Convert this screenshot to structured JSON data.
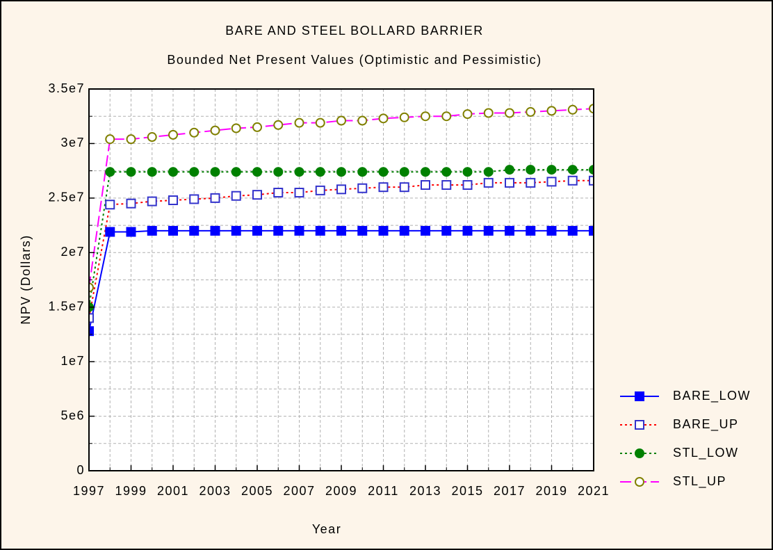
{
  "chart_data": {
    "type": "line",
    "title": "BARE AND STEEL BOLLARD BARRIER",
    "subtitle": "Bounded Net Present Values (Optimistic and Pessimistic)",
    "x_label": "Year",
    "y_label": "NPV (Dollars)",
    "x": [
      1997,
      1998,
      1999,
      2000,
      2001,
      2002,
      2003,
      2004,
      2005,
      2006,
      2007,
      2008,
      2009,
      2010,
      2011,
      2012,
      2013,
      2014,
      2015,
      2016,
      2017,
      2018,
      2019,
      2020,
      2021
    ],
    "xlim": [
      1997,
      2021
    ],
    "xticks": [
      1997,
      1999,
      2001,
      2003,
      2005,
      2007,
      2009,
      2011,
      2013,
      2015,
      2017,
      2019,
      2021
    ],
    "ylim": [
      0,
      35000000
    ],
    "yticks": [
      0,
      {
        "value": 5000000,
        "label": "5e6"
      },
      {
        "value": 10000000,
        "label": "1e7"
      },
      {
        "value": 15000000,
        "label": "1.5e7"
      },
      {
        "value": 20000000,
        "label": "2e7"
      },
      {
        "value": 25000000,
        "label": "2.5e7"
      },
      {
        "value": 30000000,
        "label": "3e7"
      },
      {
        "value": 35000000,
        "label": "3.5e7"
      }
    ],
    "grid": true,
    "minor_grid": true,
    "legend": "right",
    "series": [
      {
        "name": "BARE_LOW",
        "color": "#0000ff",
        "marker_color": "#0000ff",
        "marker": "square",
        "filled": true,
        "dash": "solid",
        "values": [
          12800000,
          21900000,
          21900000,
          22000000,
          22000000,
          22000000,
          22000000,
          22000000,
          22000000,
          22000000,
          22000000,
          22000000,
          22000000,
          22000000,
          22000000,
          22000000,
          22000000,
          22000000,
          22000000,
          22000000,
          22000000,
          22000000,
          22000000,
          22000000,
          22000000
        ]
      },
      {
        "name": "BARE_UP",
        "color": "#ff0000",
        "marker_color": "#3333cc",
        "marker": "square",
        "filled": false,
        "dash": "dotted",
        "values": [
          14000000,
          24400000,
          24500000,
          24700000,
          24800000,
          24900000,
          25000000,
          25200000,
          25300000,
          25500000,
          25500000,
          25700000,
          25800000,
          25900000,
          26000000,
          26000000,
          26200000,
          26200000,
          26200000,
          26400000,
          26400000,
          26400000,
          26500000,
          26600000,
          26600000
        ]
      },
      {
        "name": "STL_LOW",
        "color": "#008000",
        "marker_color": "#008000",
        "marker": "circle",
        "filled": true,
        "dash": "dotted",
        "values": [
          15000000,
          27400000,
          27400000,
          27400000,
          27400000,
          27400000,
          27400000,
          27400000,
          27400000,
          27400000,
          27400000,
          27400000,
          27400000,
          27400000,
          27400000,
          27400000,
          27400000,
          27400000,
          27400000,
          27400000,
          27600000,
          27600000,
          27600000,
          27600000,
          27600000
        ]
      },
      {
        "name": "STL_UP",
        "color": "#ff00ff",
        "marker_color": "#808000",
        "marker": "circle",
        "filled": false,
        "dash": "dashed",
        "values": [
          16800000,
          30400000,
          30400000,
          30600000,
          30800000,
          31000000,
          31200000,
          31400000,
          31500000,
          31700000,
          31900000,
          31900000,
          32100000,
          32100000,
          32300000,
          32400000,
          32500000,
          32500000,
          32700000,
          32800000,
          32800000,
          32900000,
          33000000,
          33100000,
          33200000
        ]
      }
    ]
  }
}
